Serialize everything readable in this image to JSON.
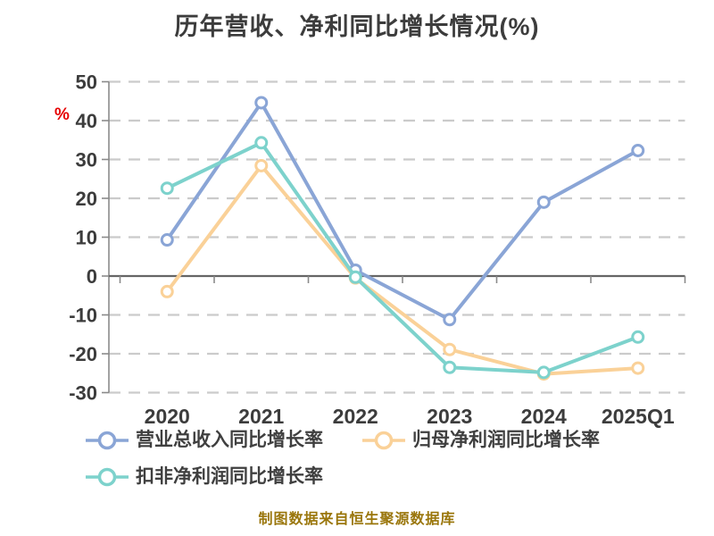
{
  "page": {
    "background_color": "#ffffff"
  },
  "header": {
    "title": "历年营收、净利同比增长情况(%)"
  },
  "axis": {
    "unit_label": "%",
    "unit_label_color": "#e60000",
    "y_tick_labels": [
      "50",
      "40",
      "30",
      "20",
      "10",
      "0",
      "-10",
      "-20",
      "-30"
    ],
    "x_tick_labels": [
      "2020",
      "2021",
      "2022",
      "2023",
      "2024",
      "2025Q1"
    ]
  },
  "chart_data": {
    "type": "line",
    "title": "历年营收、净利同比增长情况(%)",
    "categories": [
      "2020",
      "2021",
      "2022",
      "2023",
      "2024",
      "2025Q1"
    ],
    "series": [
      {
        "name": "营业总收入同比增长率",
        "color": "#8aa5d6",
        "values": [
          9.3,
          44.6,
          1.5,
          -11.2,
          19.0,
          32.3
        ]
      },
      {
        "name": "归母净利润同比增长率",
        "color": "#fad198",
        "values": [
          -4.0,
          28.4,
          -0.5,
          -18.9,
          -25.2,
          -23.7
        ]
      },
      {
        "name": "扣非净利润同比增长率",
        "color": "#7dd2cc",
        "values": [
          22.6,
          34.3,
          -0.3,
          -23.5,
          -24.8,
          -15.7
        ]
      }
    ],
    "ylabel": "%",
    "xlabel": "",
    "ylim": [
      -30,
      50
    ],
    "y_ticks": [
      50,
      40,
      30,
      20,
      10,
      0,
      -10,
      -20,
      -30
    ],
    "grid": "horizontal dashed",
    "gridline_color": "#cbcbcb",
    "axis_line_color": "#8a8a8a",
    "zero_axis_color": "#666666",
    "tick_label_color": "#3c3c3c",
    "marker": "circle, white fill, colored ring",
    "legend_position": "bottom-left"
  },
  "footer": {
    "text": "制图数据来自恒生聚源数据库",
    "color": "#9a760b"
  }
}
